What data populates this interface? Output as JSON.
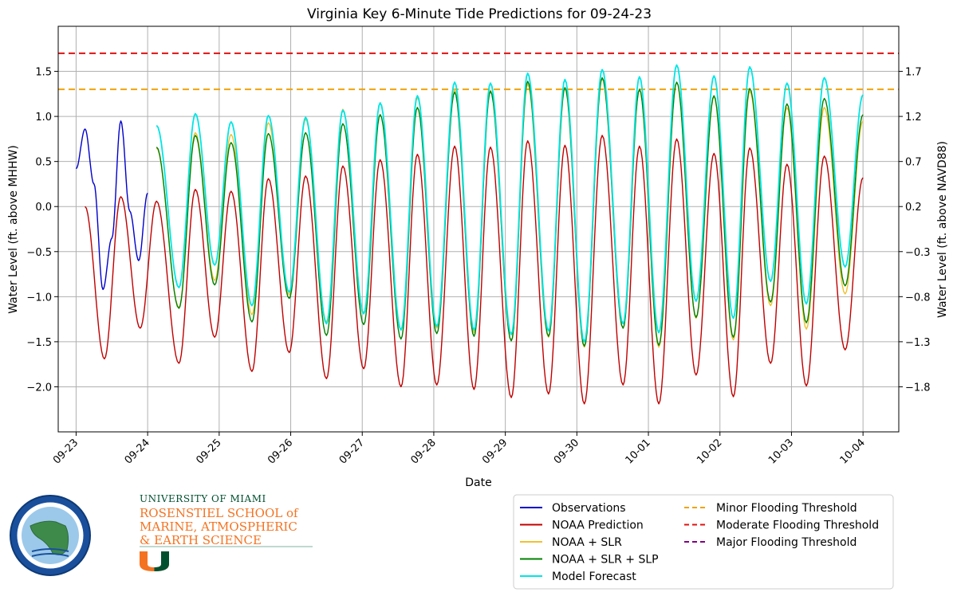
{
  "chart_data": {
    "type": "line",
    "title": "Virginia Key 6-Minute Tide Predictions for 09-24-23",
    "xlabel": "Date",
    "ylabel": "Water Level (ft. above MHHW)",
    "ylabel_right": "Water Level (ft. above NAVD88)",
    "xlim": [
      "2023-09-22T18:00",
      "2023-10-04T12:00"
    ],
    "ylim": [
      -2.5,
      2.0
    ],
    "grid": true,
    "x_ticks": [
      "09-23",
      "09-24",
      "09-25",
      "09-26",
      "09-27",
      "09-28",
      "09-29",
      "09-30",
      "10-01",
      "10-02",
      "10-03",
      "10-04"
    ],
    "y_ticks": [
      -2.0,
      -1.5,
      -1.0,
      -0.5,
      0.0,
      0.5,
      1.0,
      1.5
    ],
    "y_tick_labels": [
      "−2.0",
      "−1.5",
      "−1.0",
      "−0.5",
      "0.0",
      "0.5",
      "1.0",
      "1.5"
    ],
    "y_ticks_right": [
      -1.8,
      -1.3,
      -0.8,
      -0.3,
      0.2,
      0.7,
      1.2,
      1.7
    ],
    "y_tick_labels_right": [
      "−1.8",
      "−1.3",
      "−0.8",
      "−0.3",
      "0.2",
      "0.7",
      "1.2",
      "1.7"
    ],
    "thresholds": [
      {
        "name": "Minor Flooding Threshold",
        "value": 1.3,
        "color": "#f0a30a"
      },
      {
        "name": "Moderate Flooding Threshold",
        "value": 1.7,
        "color": "#e01010"
      },
      {
        "name": "Major Flooding Threshold",
        "value": null,
        "color": "#800080"
      }
    ],
    "series": [
      {
        "name": "Observations",
        "color": "#0000cc",
        "x": [
          "2023-09-23T00:00",
          "2023-09-23T03:00",
          "2023-09-23T06:00",
          "2023-09-23T09:00",
          "2023-09-23T12:00",
          "2023-09-23T15:00",
          "2023-09-23T18:00",
          "2023-09-23T21:00",
          "2023-09-24T00:00"
        ],
        "y": [
          0.42,
          0.86,
          0.25,
          -0.92,
          -0.35,
          0.95,
          -0.05,
          -0.6,
          0.15
        ]
      },
      {
        "name": "NOAA Prediction",
        "color": "#c00000",
        "lows": [
          [
            "2023-09-23T09:30",
            -1.69
          ],
          [
            "2023-09-23T21:30",
            -1.35
          ],
          [
            "2023-09-24T10:30",
            -1.74
          ],
          [
            "2023-09-24T22:30",
            -1.45
          ],
          [
            "2023-09-25T11:00",
            -1.83
          ],
          [
            "2023-09-25T23:30",
            -1.62
          ],
          [
            "2023-09-26T12:00",
            -1.91
          ],
          [
            "2023-09-27T00:30",
            -1.8
          ],
          [
            "2023-09-27T13:00",
            -2.0
          ],
          [
            "2023-09-28T01:00",
            -1.98
          ],
          [
            "2023-09-28T13:30",
            -2.03
          ],
          [
            "2023-09-29T02:00",
            -2.12
          ],
          [
            "2023-09-29T14:30",
            -2.08
          ],
          [
            "2023-09-30T02:30",
            -2.19
          ],
          [
            "2023-09-30T15:30",
            -1.98
          ],
          [
            "2023-10-01T03:30",
            -2.19
          ],
          [
            "2023-10-01T16:00",
            -1.87
          ],
          [
            "2023-10-02T04:30",
            -2.11
          ],
          [
            "2023-10-02T17:00",
            -1.74
          ],
          [
            "2023-10-03T05:00",
            -1.99
          ],
          [
            "2023-10-03T18:00",
            -1.59
          ]
        ],
        "highs": [
          [
            "2023-09-23T03:00",
            0.0
          ],
          [
            "2023-09-23T15:00",
            0.11
          ],
          [
            "2023-09-24T03:00",
            0.06
          ],
          [
            "2023-09-24T16:00",
            0.19
          ],
          [
            "2023-09-25T04:00",
            0.17
          ],
          [
            "2023-09-25T16:30",
            0.31
          ],
          [
            "2023-09-26T05:00",
            0.34
          ],
          [
            "2023-09-26T17:30",
            0.45
          ],
          [
            "2023-09-27T06:00",
            0.52
          ],
          [
            "2023-09-27T18:30",
            0.58
          ],
          [
            "2023-09-28T07:00",
            0.67
          ],
          [
            "2023-09-28T19:00",
            0.66
          ],
          [
            "2023-09-29T07:30",
            0.73
          ],
          [
            "2023-09-29T20:00",
            0.68
          ],
          [
            "2023-09-30T08:30",
            0.79
          ],
          [
            "2023-09-30T21:00",
            0.67
          ],
          [
            "2023-10-01T09:30",
            0.75
          ],
          [
            "2023-10-01T22:00",
            0.59
          ],
          [
            "2023-10-02T10:00",
            0.65
          ],
          [
            "2023-10-02T22:30",
            0.47
          ],
          [
            "2023-10-03T11:00",
            0.56
          ],
          [
            "2023-10-04T00:00",
            0.32
          ]
        ]
      },
      {
        "name": "NOAA + SLR",
        "color": "#f0c030",
        "lows": [
          [
            "2023-09-24T10:30",
            -1.12
          ],
          [
            "2023-09-24T22:30",
            -0.82
          ],
          [
            "2023-09-25T11:00",
            -1.2
          ],
          [
            "2023-09-25T23:30",
            -0.98
          ],
          [
            "2023-09-26T12:00",
            -1.28
          ],
          [
            "2023-09-27T00:30",
            -1.18
          ],
          [
            "2023-09-27T13:00",
            -1.37
          ],
          [
            "2023-09-28T01:00",
            -1.35
          ],
          [
            "2023-09-28T13:30",
            -1.4
          ],
          [
            "2023-09-29T02:00",
            -1.49
          ],
          [
            "2023-09-29T14:30",
            -1.45
          ],
          [
            "2023-09-30T02:30",
            -1.56
          ],
          [
            "2023-09-30T15:30",
            -1.35
          ],
          [
            "2023-10-01T03:30",
            -1.56
          ],
          [
            "2023-10-01T16:00",
            -1.24
          ],
          [
            "2023-10-02T04:30",
            -1.48
          ],
          [
            "2023-10-02T17:00",
            -1.1
          ],
          [
            "2023-10-03T05:00",
            -1.36
          ],
          [
            "2023-10-03T18:00",
            -0.97
          ]
        ],
        "highs": [
          [
            "2023-09-24T03:00",
            0.65
          ],
          [
            "2023-09-24T16:00",
            0.82
          ],
          [
            "2023-09-25T04:00",
            0.8
          ],
          [
            "2023-09-25T16:30",
            0.93
          ],
          [
            "2023-09-26T05:00",
            0.97
          ],
          [
            "2023-09-26T17:30",
            1.08
          ],
          [
            "2023-09-27T06:00",
            1.15
          ],
          [
            "2023-09-27T18:30",
            1.21
          ],
          [
            "2023-09-28T07:00",
            1.3
          ],
          [
            "2023-09-28T19:00",
            1.29
          ],
          [
            "2023-09-29T07:30",
            1.36
          ],
          [
            "2023-09-29T20:00",
            1.31
          ],
          [
            "2023-09-30T08:30",
            1.42
          ],
          [
            "2023-09-30T21:00",
            1.3
          ],
          [
            "2023-10-01T09:30",
            1.38
          ],
          [
            "2023-10-01T22:00",
            1.22
          ],
          [
            "2023-10-02T10:00",
            1.28
          ],
          [
            "2023-10-02T22:30",
            1.1
          ],
          [
            "2023-10-03T11:00",
            1.1
          ],
          [
            "2023-10-04T00:00",
            0.95
          ]
        ]
      },
      {
        "name": "NOAA + SLR + SLP",
        "color": "#008000",
        "lows": [
          [
            "2023-09-24T10:30",
            -1.13
          ],
          [
            "2023-09-24T22:30",
            -0.87
          ],
          [
            "2023-09-25T11:00",
            -1.28
          ],
          [
            "2023-09-25T23:30",
            -1.02
          ],
          [
            "2023-09-26T12:00",
            -1.43
          ],
          [
            "2023-09-27T00:30",
            -1.31
          ],
          [
            "2023-09-27T13:00",
            -1.47
          ],
          [
            "2023-09-28T01:00",
            -1.41
          ],
          [
            "2023-09-28T13:30",
            -1.44
          ],
          [
            "2023-09-29T02:00",
            -1.49
          ],
          [
            "2023-09-29T14:30",
            -1.44
          ],
          [
            "2023-09-30T02:30",
            -1.55
          ],
          [
            "2023-09-30T15:30",
            -1.35
          ],
          [
            "2023-10-01T03:30",
            -1.54
          ],
          [
            "2023-10-01T16:00",
            -1.23
          ],
          [
            "2023-10-02T04:30",
            -1.45
          ],
          [
            "2023-10-02T17:00",
            -1.06
          ],
          [
            "2023-10-03T05:00",
            -1.29
          ],
          [
            "2023-10-03T18:00",
            -0.88
          ]
        ],
        "highs": [
          [
            "2023-09-24T03:00",
            0.66
          ],
          [
            "2023-09-24T16:00",
            0.79
          ],
          [
            "2023-09-25T04:00",
            0.71
          ],
          [
            "2023-09-25T16:30",
            0.81
          ],
          [
            "2023-09-26T05:00",
            0.82
          ],
          [
            "2023-09-26T17:30",
            0.92
          ],
          [
            "2023-09-27T06:00",
            1.02
          ],
          [
            "2023-09-27T18:30",
            1.1
          ],
          [
            "2023-09-28T07:00",
            1.27
          ],
          [
            "2023-09-28T19:00",
            1.28
          ],
          [
            "2023-09-29T07:30",
            1.39
          ],
          [
            "2023-09-29T20:00",
            1.32
          ],
          [
            "2023-09-30T08:30",
            1.43
          ],
          [
            "2023-09-30T21:00",
            1.3
          ],
          [
            "2023-10-01T09:30",
            1.38
          ],
          [
            "2023-10-01T22:00",
            1.23
          ],
          [
            "2023-10-02T10:00",
            1.31
          ],
          [
            "2023-10-02T22:30",
            1.14
          ],
          [
            "2023-10-03T11:00",
            1.2
          ],
          [
            "2023-10-04T00:00",
            1.02
          ]
        ]
      },
      {
        "name": "Model Forecast",
        "color": "#00e5e5",
        "lows": [
          [
            "2023-09-24T10:30",
            -0.9
          ],
          [
            "2023-09-24T22:30",
            -0.65
          ],
          [
            "2023-09-25T11:00",
            -1.1
          ],
          [
            "2023-09-25T23:30",
            -0.95
          ],
          [
            "2023-09-26T12:00",
            -1.3
          ],
          [
            "2023-09-27T00:30",
            -1.19
          ],
          [
            "2023-09-27T13:00",
            -1.37
          ],
          [
            "2023-09-28T01:00",
            -1.33
          ],
          [
            "2023-09-28T13:30",
            -1.37
          ],
          [
            "2023-09-29T02:00",
            -1.42
          ],
          [
            "2023-09-29T14:30",
            -1.38
          ],
          [
            "2023-09-30T02:30",
            -1.5
          ],
          [
            "2023-09-30T15:30",
            -1.3
          ],
          [
            "2023-10-01T03:30",
            -1.4
          ],
          [
            "2023-10-01T16:00",
            -1.05
          ],
          [
            "2023-10-02T04:30",
            -1.24
          ],
          [
            "2023-10-02T17:00",
            -0.83
          ],
          [
            "2023-10-03T05:00",
            -1.08
          ],
          [
            "2023-10-03T18:00",
            -0.67
          ]
        ],
        "highs": [
          [
            "2023-09-24T03:00",
            0.9
          ],
          [
            "2023-09-24T16:00",
            1.03
          ],
          [
            "2023-09-25T04:00",
            0.94
          ],
          [
            "2023-09-25T16:30",
            1.01
          ],
          [
            "2023-09-26T05:00",
            0.99
          ],
          [
            "2023-09-26T17:30",
            1.07
          ],
          [
            "2023-09-27T06:00",
            1.15
          ],
          [
            "2023-09-27T18:30",
            1.23
          ],
          [
            "2023-09-28T07:00",
            1.38
          ],
          [
            "2023-09-28T19:00",
            1.37
          ],
          [
            "2023-09-29T07:30",
            1.48
          ],
          [
            "2023-09-29T20:00",
            1.41
          ],
          [
            "2023-09-30T08:30",
            1.52
          ],
          [
            "2023-09-30T21:00",
            1.44
          ],
          [
            "2023-10-01T09:30",
            1.57
          ],
          [
            "2023-10-01T22:00",
            1.45
          ],
          [
            "2023-10-02T10:00",
            1.55
          ],
          [
            "2023-10-02T22:30",
            1.37
          ],
          [
            "2023-10-03T11:00",
            1.43
          ],
          [
            "2023-10-04T00:00",
            1.24
          ]
        ]
      }
    ],
    "legend": {
      "placement": "bottom-right",
      "items": [
        {
          "label": "Observations",
          "color": "#0000cc",
          "style": "solid"
        },
        {
          "label": "NOAA Prediction",
          "color": "#c00000",
          "style": "solid"
        },
        {
          "label": "NOAA + SLR",
          "color": "#f0c030",
          "style": "solid"
        },
        {
          "label": "NOAA + SLR + SLP",
          "color": "#008000",
          "style": "solid"
        },
        {
          "label": "Model Forecast",
          "color": "#00e5e5",
          "style": "solid"
        },
        {
          "label": "Minor Flooding Threshold",
          "color": "#f0a30a",
          "style": "dashed"
        },
        {
          "label": "Moderate Flooding Threshold",
          "color": "#e01010",
          "style": "dashed"
        },
        {
          "label": "Major Flooding Threshold",
          "color": "#800080",
          "style": "dashed"
        }
      ]
    }
  },
  "logos": {
    "sfwmd_icon": "south-florida-water-management-district-seal",
    "um_line1": "UNIVERSITY OF MIAMI",
    "um_line2": "ROSENSTIEL SCHOOL of",
    "um_line3": "MARINE, ATMOSPHERIC",
    "um_line4": "& EARTH SCIENCE",
    "um_icon": "university-of-miami-u-logo"
  }
}
